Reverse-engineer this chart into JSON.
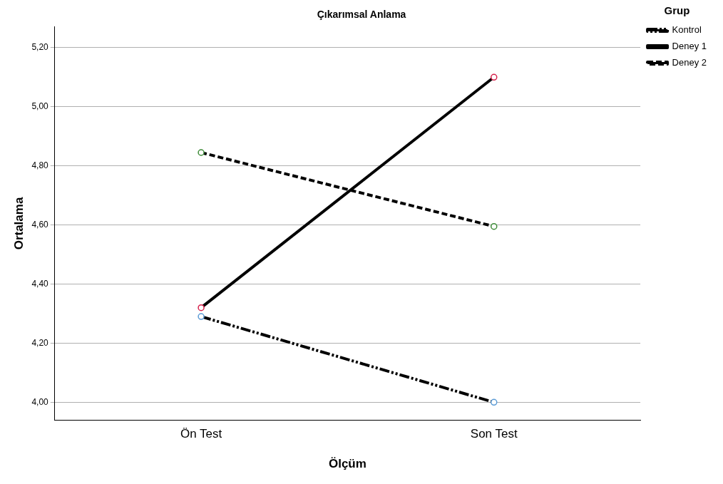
{
  "chart_data": {
    "type": "line",
    "title": "Çıkarımsal Anlama",
    "xlabel": "Ölçüm",
    "ylabel": "Ortalama",
    "legend_title": "Grup",
    "categories": [
      "Ön Test",
      "Son Test"
    ],
    "series": [
      {
        "name": "Kontrol",
        "color": "#000000",
        "colors": [
          "#5b9bd5",
          "#5b9bd5"
        ],
        "line_style": "dotted",
        "values": [
          4.29,
          4.0
        ]
      },
      {
        "name": "Deney 1",
        "color": "#000000",
        "colors": [
          "#d6204b",
          "#d6204b"
        ],
        "line_style": "solid",
        "values": [
          4.32,
          5.1
        ]
      },
      {
        "name": "Deney 2",
        "color": "#000000",
        "colors": [
          "#3d8b37",
          "#3d8b37"
        ],
        "line_style": "dashed",
        "values": [
          4.845,
          4.595
        ]
      }
    ],
    "ylim": [
      3.94,
      5.27
    ],
    "yticks": [
      {
        "value": 4.0,
        "label": "4,00"
      },
      {
        "value": 4.2,
        "label": "4,20"
      },
      {
        "value": 4.4,
        "label": "4,40"
      },
      {
        "value": 4.6,
        "label": "4,60"
      },
      {
        "value": 4.8,
        "label": "4,80"
      },
      {
        "value": 5.0,
        "label": "5,00"
      },
      {
        "value": 5.2,
        "label": "5,20"
      }
    ],
    "grid": "y",
    "legend": "top right",
    "marker": "circle"
  }
}
